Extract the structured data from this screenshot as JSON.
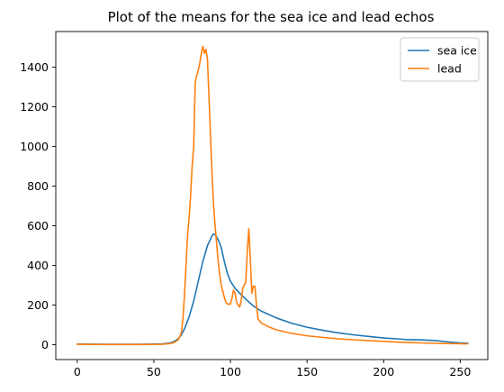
{
  "chart_data": {
    "type": "line",
    "title": "Plot of the means for the sea ice and lead echos",
    "xlabel": "",
    "ylabel": "",
    "xlim": [
      -14,
      268
    ],
    "ylim": [
      -75,
      1580
    ],
    "xticks": [
      0,
      50,
      100,
      150,
      200,
      250
    ],
    "yticks": [
      0,
      200,
      400,
      600,
      800,
      1000,
      1200,
      1400
    ],
    "grid": false,
    "legend_position": "top-right",
    "series": [
      {
        "name": "sea ice",
        "color": "#1f77b4",
        "points": [
          [
            0,
            3
          ],
          [
            20,
            2
          ],
          [
            40,
            2
          ],
          [
            55,
            4
          ],
          [
            60,
            8
          ],
          [
            63,
            15
          ],
          [
            66,
            30
          ],
          [
            68,
            50
          ],
          [
            70,
            80
          ],
          [
            73,
            140
          ],
          [
            76,
            220
          ],
          [
            79,
            320
          ],
          [
            82,
            420
          ],
          [
            85,
            500
          ],
          [
            88,
            550
          ],
          [
            89,
            558
          ],
          [
            90,
            555
          ],
          [
            92,
            530
          ],
          [
            94,
            490
          ],
          [
            96,
            420
          ],
          [
            98,
            360
          ],
          [
            100,
            320
          ],
          [
            103,
            285
          ],
          [
            106,
            260
          ],
          [
            110,
            230
          ],
          [
            115,
            195
          ],
          [
            120,
            170
          ],
          [
            130,
            135
          ],
          [
            140,
            108
          ],
          [
            150,
            88
          ],
          [
            160,
            73
          ],
          [
            170,
            60
          ],
          [
            180,
            50
          ],
          [
            190,
            42
          ],
          [
            200,
            34
          ],
          [
            210,
            29
          ],
          [
            215,
            26
          ],
          [
            225,
            24
          ],
          [
            235,
            20
          ],
          [
            245,
            12
          ],
          [
            250,
            9
          ],
          [
            255,
            7
          ]
        ]
      },
      {
        "name": "lead",
        "color": "#ff7f0e",
        "points": [
          [
            0,
            2
          ],
          [
            20,
            1
          ],
          [
            40,
            1
          ],
          [
            55,
            2
          ],
          [
            60,
            5
          ],
          [
            63,
            10
          ],
          [
            66,
            25
          ],
          [
            68,
            60
          ],
          [
            69,
            130
          ],
          [
            70,
            250
          ],
          [
            71,
            400
          ],
          [
            72,
            550
          ],
          [
            73,
            640
          ],
          [
            74,
            750
          ],
          [
            75,
            900
          ],
          [
            76,
            1000
          ],
          [
            77,
            1320
          ],
          [
            78,
            1360
          ],
          [
            79,
            1385
          ],
          [
            80,
            1420
          ],
          [
            81,
            1470
          ],
          [
            82,
            1505
          ],
          [
            83,
            1470
          ],
          [
            84,
            1490
          ],
          [
            85,
            1440
          ],
          [
            86,
            1250
          ],
          [
            87,
            1050
          ],
          [
            88,
            860
          ],
          [
            89,
            700
          ],
          [
            90,
            600
          ],
          [
            91,
            510
          ],
          [
            92,
            420
          ],
          [
            93,
            350
          ],
          [
            94,
            300
          ],
          [
            95,
            270
          ],
          [
            96,
            240
          ],
          [
            97,
            215
          ],
          [
            98,
            205
          ],
          [
            99,
            205
          ],
          [
            100,
            205
          ],
          [
            101,
            235
          ],
          [
            102,
            275
          ],
          [
            103,
            260
          ],
          [
            104,
            215
          ],
          [
            105,
            200
          ],
          [
            106,
            190
          ],
          [
            107,
            220
          ],
          [
            108,
            285
          ],
          [
            109,
            300
          ],
          [
            110,
            315
          ],
          [
            111,
            470
          ],
          [
            112,
            585
          ],
          [
            113,
            430
          ],
          [
            114,
            260
          ],
          [
            115,
            295
          ],
          [
            116,
            295
          ],
          [
            117,
            200
          ],
          [
            118,
            130
          ],
          [
            120,
            110
          ],
          [
            125,
            90
          ],
          [
            130,
            75
          ],
          [
            140,
            57
          ],
          [
            150,
            45
          ],
          [
            160,
            37
          ],
          [
            170,
            30
          ],
          [
            180,
            25
          ],
          [
            190,
            21
          ],
          [
            200,
            17
          ],
          [
            210,
            13
          ],
          [
            220,
            10
          ],
          [
            230,
            8
          ],
          [
            240,
            6
          ],
          [
            250,
            5
          ],
          [
            255,
            4
          ]
        ]
      }
    ]
  }
}
